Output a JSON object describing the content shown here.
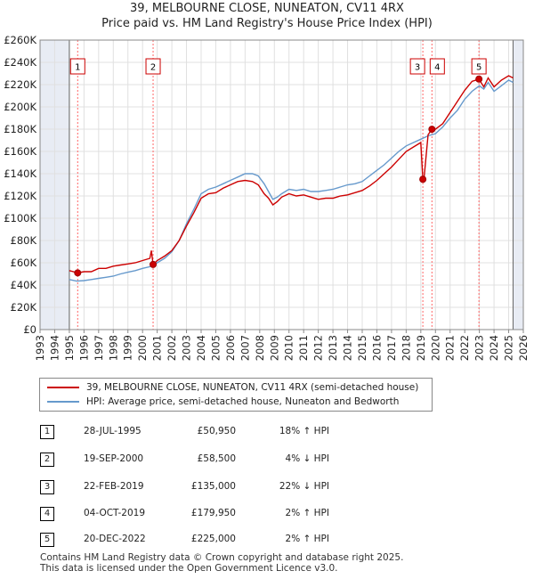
{
  "chart_data": {
    "type": "line",
    "title": "39, MELBOURNE CLOSE, NUNEATON, CV11 4RX",
    "subtitle": "Price paid vs. HM Land Registry's House Price Index (HPI)",
    "xlim": [
      1993,
      2026
    ],
    "ylim": [
      0,
      260000
    ],
    "x_ticks": [
      "1993",
      "1994",
      "1995",
      "1996",
      "1997",
      "1998",
      "1999",
      "2000",
      "2001",
      "2002",
      "2003",
      "2004",
      "2005",
      "2006",
      "2007",
      "2008",
      "2009",
      "2010",
      "2011",
      "2012",
      "2013",
      "2014",
      "2015",
      "2016",
      "2017",
      "2018",
      "2019",
      "2020",
      "2021",
      "2022",
      "2023",
      "2024",
      "2025",
      "2026"
    ],
    "y_ticks": [
      {
        "value": 0,
        "label": "£0"
      },
      {
        "value": 20000,
        "label": "£20K"
      },
      {
        "value": 40000,
        "label": "£40K"
      },
      {
        "value": 60000,
        "label": "£60K"
      },
      {
        "value": 80000,
        "label": "£80K"
      },
      {
        "value": 100000,
        "label": "£100K"
      },
      {
        "value": 120000,
        "label": "£120K"
      },
      {
        "value": 140000,
        "label": "£140K"
      },
      {
        "value": 160000,
        "label": "£160K"
      },
      {
        "value": 180000,
        "label": "£180K"
      },
      {
        "value": 200000,
        "label": "£200K"
      },
      {
        "value": 220000,
        "label": "£220K"
      },
      {
        "value": 240000,
        "label": "£240K"
      },
      {
        "value": 260000,
        "label": "£260K"
      }
    ],
    "data_range": [
      1995.0,
      2025.3
    ],
    "series": [
      {
        "name": "39, MELBOURNE CLOSE, NUNEATON, CV11 4RX (semi-detached house)",
        "color": "#cc0000",
        "x": [
          1995.0,
          1995.57,
          1996.0,
          1996.5,
          1997.0,
          1997.5,
          1998.0,
          1998.5,
          1999.0,
          1999.5,
          2000.0,
          2000.5,
          2000.6,
          2000.72,
          2001.0,
          2001.5,
          2002.0,
          2002.5,
          2003.0,
          2003.5,
          2004.0,
          2004.5,
          2005.0,
          2005.5,
          2006.0,
          2006.5,
          2007.0,
          2007.5,
          2007.9,
          2008.3,
          2008.6,
          2008.9,
          2009.2,
          2009.5,
          2010.0,
          2010.5,
          2011.0,
          2011.5,
          2012.0,
          2012.5,
          2013.0,
          2013.5,
          2014.0,
          2014.5,
          2015.0,
          2015.5,
          2016.0,
          2016.5,
          2017.0,
          2017.5,
          2018.0,
          2018.5,
          2019.0,
          2019.14,
          2019.2,
          2019.5,
          2019.76,
          2020.0,
          2020.5,
          2021.0,
          2021.5,
          2022.0,
          2022.5,
          2022.97,
          2023.3,
          2023.6,
          2024.0,
          2024.5,
          2025.0,
          2025.3
        ],
        "y": [
          53000,
          50950,
          52000,
          52000,
          55000,
          55000,
          57000,
          58000,
          59000,
          60000,
          62000,
          64000,
          71000,
          58500,
          62000,
          66000,
          71000,
          80000,
          93000,
          105000,
          118000,
          122000,
          123000,
          127000,
          130000,
          133000,
          134000,
          133000,
          130000,
          122000,
          118000,
          112000,
          115000,
          119000,
          122000,
          120000,
          121000,
          119000,
          117000,
          118000,
          118000,
          120000,
          121000,
          123000,
          125000,
          129000,
          134000,
          140000,
          146000,
          153000,
          160000,
          164000,
          168000,
          135000,
          133000,
          175000,
          179950,
          180000,
          185000,
          195000,
          205000,
          215000,
          223000,
          225000,
          218000,
          226000,
          218000,
          224000,
          228000,
          226000
        ]
      },
      {
        "name": "HPI: Average price, semi-detached house, Nuneaton and Bedworth",
        "color": "#6699cc",
        "x": [
          1995.0,
          1995.5,
          1996.0,
          1996.5,
          1997.0,
          1997.5,
          1998.0,
          1998.5,
          1999.0,
          1999.5,
          2000.0,
          2000.5,
          2001.0,
          2001.5,
          2002.0,
          2002.5,
          2003.0,
          2003.5,
          2004.0,
          2004.5,
          2005.0,
          2005.5,
          2006.0,
          2006.5,
          2007.0,
          2007.5,
          2007.9,
          2008.3,
          2008.6,
          2008.9,
          2009.2,
          2009.5,
          2010.0,
          2010.5,
          2011.0,
          2011.5,
          2012.0,
          2012.5,
          2013.0,
          2013.5,
          2014.0,
          2014.5,
          2015.0,
          2015.5,
          2016.0,
          2016.5,
          2017.0,
          2017.5,
          2018.0,
          2018.5,
          2019.0,
          2019.5,
          2020.0,
          2020.5,
          2021.0,
          2021.5,
          2022.0,
          2022.5,
          2023.0,
          2023.3,
          2023.6,
          2024.0,
          2024.5,
          2025.0,
          2025.3
        ],
        "y": [
          45000,
          43500,
          44000,
          45000,
          46000,
          47000,
          48000,
          50000,
          51500,
          53000,
          55000,
          56500,
          60000,
          64000,
          70000,
          80000,
          95000,
          108000,
          122000,
          126000,
          128000,
          131000,
          134000,
          137000,
          140000,
          140000,
          138000,
          131000,
          124000,
          117000,
          119000,
          122000,
          126000,
          125000,
          126000,
          124000,
          124000,
          125000,
          126000,
          128000,
          130000,
          131000,
          133000,
          138000,
          143000,
          148000,
          154000,
          160000,
          165000,
          168000,
          171000,
          174000,
          176000,
          182000,
          190000,
          197000,
          207000,
          214000,
          219000,
          216000,
          222000,
          214000,
          219000,
          224000,
          222000
        ]
      }
    ],
    "transactions": [
      {
        "label": "1",
        "date": "28-JUL-1995",
        "x": 1995.57,
        "price": "£50,950",
        "value": 50950,
        "hpi": "18% ↑ HPI"
      },
      {
        "label": "2",
        "date": "19-SEP-2000",
        "x": 2000.72,
        "price": "£58,500",
        "value": 58500,
        "hpi": "4% ↓ HPI"
      },
      {
        "label": "3",
        "date": "22-FEB-2019",
        "x": 2019.14,
        "price": "£135,000",
        "value": 135000,
        "hpi": "22% ↓ HPI"
      },
      {
        "label": "4",
        "date": "04-OCT-2019",
        "x": 2019.76,
        "price": "£179,950",
        "value": 179950,
        "hpi": "2% ↑ HPI"
      },
      {
        "label": "5",
        "date": "20-DEC-2022",
        "x": 2022.97,
        "price": "£225,000",
        "value": 225000,
        "hpi": "2% ↑ HPI"
      }
    ]
  },
  "legend": {
    "property": "39, MELBOURNE CLOSE, NUNEATON, CV11 4RX (semi-detached house)",
    "hpi": "HPI: Average price, semi-detached house, Nuneaton and Bedworth"
  },
  "footer": {
    "line1": "Contains HM Land Registry data © Crown copyright and database right 2025.",
    "line2": "This data is licensed under the Open Government Licence v3.0."
  },
  "colors": {
    "property": "#cc0000",
    "hpi": "#6699cc",
    "shade": "#e8ecf4",
    "grid": "#e0e0e0",
    "vline": "#ff6666"
  }
}
